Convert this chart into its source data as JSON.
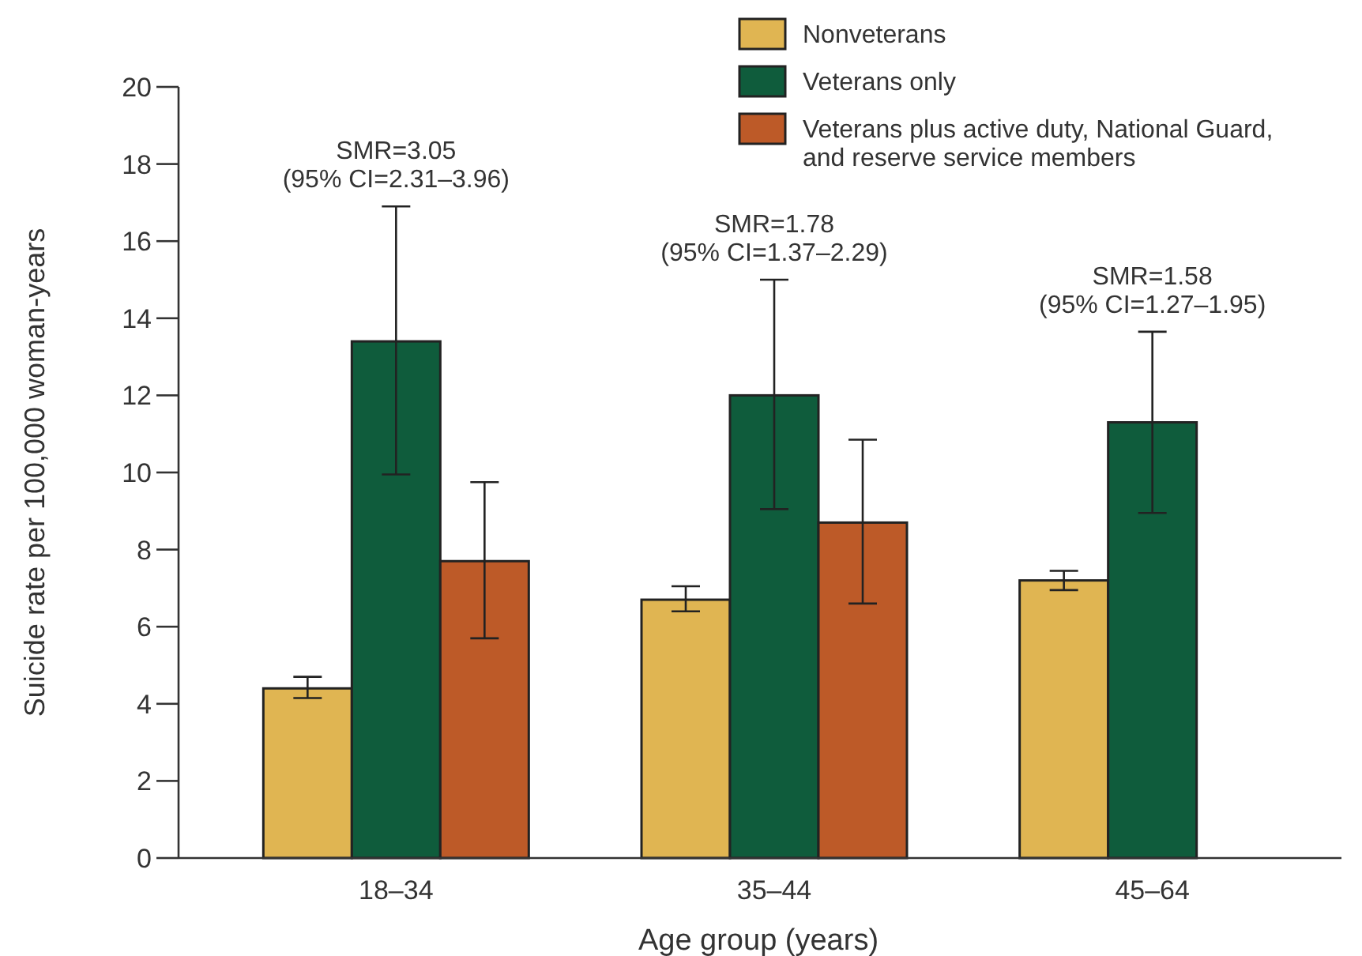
{
  "chart_data": {
    "type": "bar",
    "xlabel": "Age group (years)",
    "ylabel": "Suicide rate per 100,000 woman-years",
    "categories": [
      "18–34",
      "35–44",
      "45–64"
    ],
    "series": [
      {
        "name": "Nonveterans",
        "color": "#e0b552",
        "values": [
          4.4,
          6.7,
          7.2
        ],
        "errors": [
          [
            4.15,
            4.7
          ],
          [
            6.4,
            7.05
          ],
          [
            6.95,
            7.45
          ]
        ]
      },
      {
        "name": "Veterans only",
        "color": "#0f5c3c",
        "values": [
          13.4,
          12.0,
          11.3
        ],
        "errors": [
          [
            9.95,
            16.9
          ],
          [
            9.05,
            15.0
          ],
          [
            8.95,
            13.65
          ]
        ]
      },
      {
        "name": "Veterans plus active duty, National Guard, and reserve service members",
        "color": "#bd5a28",
        "values": [
          7.7,
          8.7,
          null
        ],
        "errors": [
          [
            5.7,
            9.75
          ],
          [
            6.6,
            10.85
          ],
          null
        ]
      }
    ],
    "ylim": [
      0,
      20
    ],
    "yticks": [
      0,
      2,
      4,
      6,
      8,
      10,
      12,
      14,
      16,
      18,
      20
    ],
    "grid": false,
    "legend": "top right",
    "annotations": [
      {
        "text": "SMR=3.05\n(95% CI=2.31–3.96)",
        "x": "18–34",
        "y": 16.9
      },
      {
        "text": "SMR=1.78\n(95% CI=1.37–2.29)",
        "x": "35–44",
        "y": 15.0
      },
      {
        "text": "SMR=1.58\n(95% CI=1.27–1.95)",
        "x": "45–64",
        "y": 13.65
      }
    ]
  }
}
